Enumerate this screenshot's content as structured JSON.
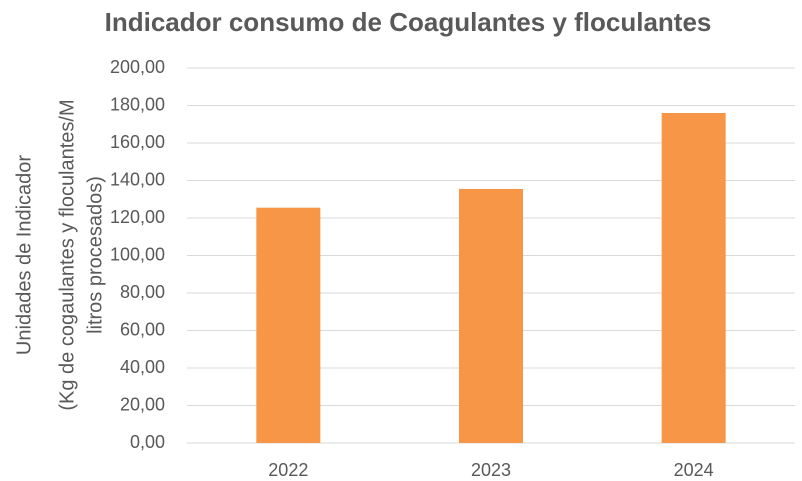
{
  "chart_data": {
    "type": "bar",
    "title": "Indicador consumo de Coagulantes y floculantes",
    "ylabel": [
      "Unidades de Indicador",
      "(Kg de cogaulantes y floculantes/M",
      "litros procesados)"
    ],
    "categories": [
      "2022",
      "2023",
      "2024"
    ],
    "values": [
      125.5,
      135.5,
      176
    ],
    "color": "#f79646",
    "ylim": [
      0,
      200
    ],
    "yticks": [
      {
        "value": 0,
        "label": "0,00"
      },
      {
        "value": 20,
        "label": "20,00"
      },
      {
        "value": 40,
        "label": "40,00"
      },
      {
        "value": 60,
        "label": "60,00"
      },
      {
        "value": 80,
        "label": "80,00"
      },
      {
        "value": 100,
        "label": "100,00"
      },
      {
        "value": 120,
        "label": "120,00"
      },
      {
        "value": 140,
        "label": "140,00"
      },
      {
        "value": 160,
        "label": "160,00"
      },
      {
        "value": 180,
        "label": "180,00"
      },
      {
        "value": 200,
        "label": "200,00"
      }
    ],
    "grid": true
  }
}
